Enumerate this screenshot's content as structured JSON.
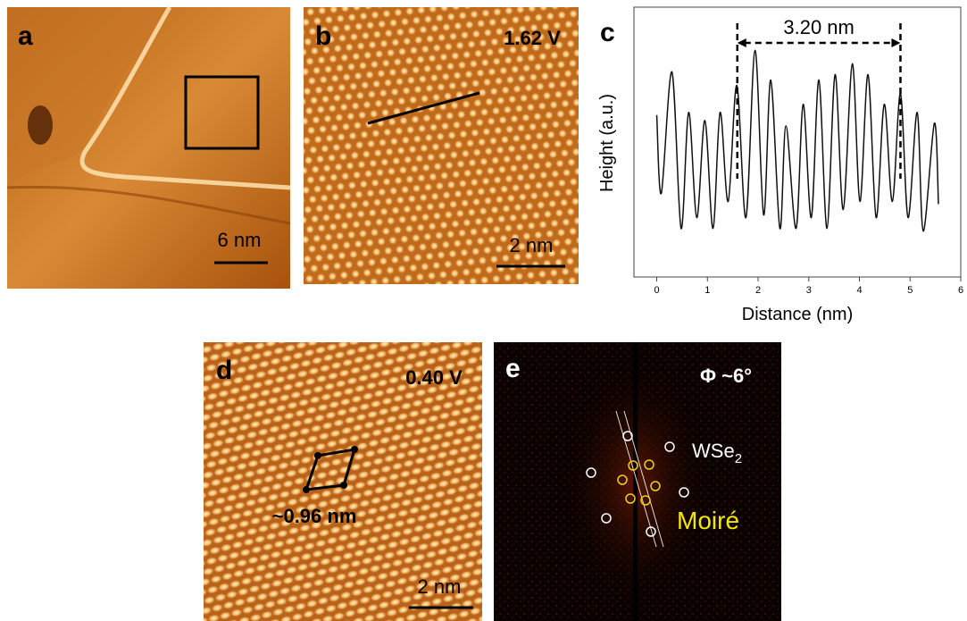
{
  "panels": {
    "a": {
      "label": "a",
      "scale_bar": "6 nm"
    },
    "b": {
      "label": "b",
      "bias": "1.62 V",
      "scale_bar": "2 nm"
    },
    "c": {
      "label": "c"
    },
    "d": {
      "label": "d",
      "bias": "0.40 V",
      "cell": "~0.96 nm",
      "scale_bar": "2 nm"
    },
    "e": {
      "label": "e",
      "angle": "Φ ~6°",
      "wse2": {
        "text": "WSe",
        "subscript": "2"
      },
      "moire": "Moiré"
    }
  },
  "chart_data": {
    "type": "line",
    "xlabel": "Distance (nm)",
    "ylabel": "Height (a.u.)",
    "xlim": [
      -0.45,
      6
    ],
    "xticks": [
      0,
      1,
      2,
      3,
      4,
      5,
      6
    ],
    "ylim": [
      0,
      1
    ],
    "annotation": {
      "text": "3.20 nm",
      "x_start": 1.59,
      "x_end": 4.81
    },
    "series": [
      {
        "color": "#111111",
        "x": [
          0,
          0.09,
          0.3,
          0.48,
          0.63,
          0.79,
          0.95,
          1.11,
          1.25,
          1.41,
          1.58,
          1.76,
          1.94,
          2.11,
          2.25,
          2.43,
          2.55,
          2.75,
          2.89,
          3.05,
          3.2,
          3.36,
          3.52,
          3.68,
          3.86,
          4.01,
          4.17,
          4.33,
          4.49,
          4.65,
          4.81,
          4.96,
          5.14,
          5.26,
          5.48,
          5.56
        ],
        "values": [
          0.6,
          0.31,
          0.76,
          0.18,
          0.61,
          0.22,
          0.58,
          0.18,
          0.61,
          0.28,
          0.71,
          0.22,
          0.84,
          0.23,
          0.73,
          0.18,
          0.56,
          0.18,
          0.64,
          0.22,
          0.73,
          0.18,
          0.75,
          0.25,
          0.79,
          0.28,
          0.75,
          0.22,
          0.64,
          0.28,
          0.68,
          0.22,
          0.61,
          0.17,
          0.57,
          0.27
        ]
      }
    ]
  }
}
